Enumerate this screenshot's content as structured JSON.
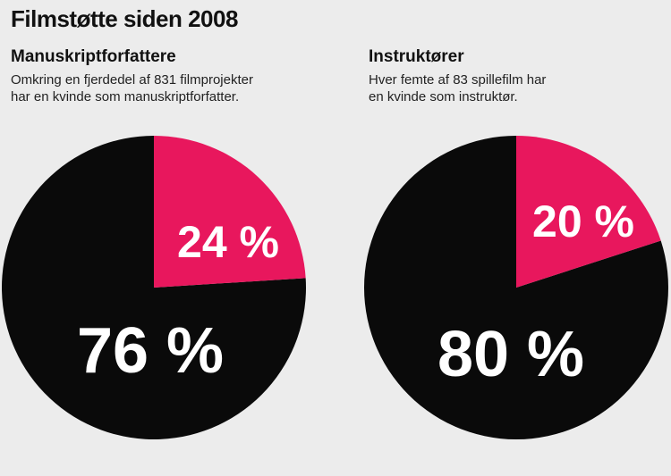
{
  "title": "Filmstøtte siden 2008",
  "colors": {
    "highlight": "#e8175d",
    "base": "#0a0a0a",
    "background": "#ececec"
  },
  "chart_data": [
    {
      "type": "pie",
      "title": "Manuskriptforfattere",
      "subtitle_lines": [
        "Omkring en fjerdedel af 831 filmprojekter",
        "har en kvinde som manuskriptforfatter."
      ],
      "slices": [
        {
          "label": "24 %",
          "value": 24,
          "color": "#e8175d"
        },
        {
          "label": "76 %",
          "value": 76,
          "color": "#0a0a0a"
        }
      ]
    },
    {
      "type": "pie",
      "title": "Instruktører",
      "subtitle_lines": [
        "Hver femte af 83 spillefilm har",
        "en kvinde som instruktør."
      ],
      "slices": [
        {
          "label": "20 %",
          "value": 20,
          "color": "#e8175d"
        },
        {
          "label": "80 %",
          "value": 80,
          "color": "#0a0a0a"
        }
      ]
    }
  ]
}
